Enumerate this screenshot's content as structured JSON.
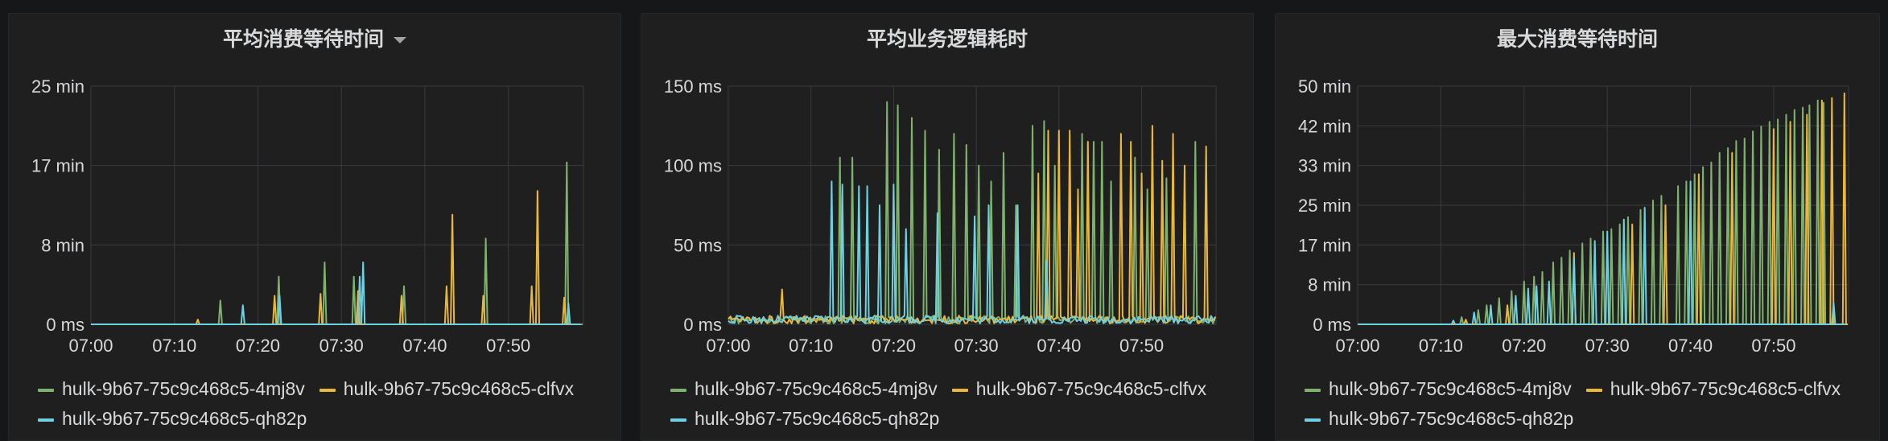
{
  "colors": {
    "green": "#7eb26d",
    "yellow": "#eab839",
    "blue": "#6ed0e0",
    "grid": "#3a3b3e",
    "axis_text": "#d8d9da"
  },
  "panels": [
    {
      "title": "平均消费等待时间",
      "has_menu_caret": true,
      "caret_icon": "chevron-down-icon"
    },
    {
      "title": "平均业务逻辑耗时",
      "has_menu_caret": false
    },
    {
      "title": "最大消费等待时间",
      "has_menu_caret": false
    }
  ],
  "legend": [
    {
      "name": "hulk-9b67-75c9c468c5-4mj8v",
      "color": "#7eb26d"
    },
    {
      "name": "hulk-9b67-75c9c468c5-clfvx",
      "color": "#eab839"
    },
    {
      "name": "hulk-9b67-75c9c468c5-qh82p",
      "color": "#6ed0e0"
    }
  ],
  "chart_data": [
    {
      "type": "line",
      "title": "平均消费等待时间",
      "xlim": [
        "07:00",
        "07:59"
      ],
      "x_ticks": [
        "07:00",
        "07:10",
        "07:20",
        "07:30",
        "07:40",
        "07:50"
      ],
      "ylim": [
        0,
        25
      ],
      "y_unit": "min",
      "y_ticks": [
        "0 ms",
        "8 min",
        "17 min",
        "25 min"
      ],
      "grid": true,
      "legend_position": "bottom",
      "series": [
        {
          "name": "hulk-9b67-75c9c468c5-4mj8v",
          "color": "#7eb26d",
          "spikes": [
            [
              15.5,
              2.5
            ],
            [
              22.5,
              5.0
            ],
            [
              28,
              6.5
            ],
            [
              31.5,
              5.0
            ],
            [
              37.5,
              4.0
            ],
            [
              47.3,
              9.0
            ],
            [
              57,
              17.0
            ]
          ]
        },
        {
          "name": "hulk-9b67-75c9c468c5-clfvx",
          "color": "#eab839",
          "spikes": [
            [
              12.8,
              0.5
            ],
            [
              22,
              3.0
            ],
            [
              27.5,
              3.2
            ],
            [
              32,
              3.5
            ],
            [
              37.2,
              3.0
            ],
            [
              42.6,
              4.0
            ],
            [
              43.3,
              11.5
            ],
            [
              47,
              3.0
            ],
            [
              52.8,
              4.0
            ],
            [
              53.5,
              14.0
            ],
            [
              56.7,
              2.8
            ]
          ]
        },
        {
          "name": "hulk-9b67-75c9c468c5-qh82p",
          "color": "#6ed0e0",
          "spikes": [
            [
              18.2,
              2.0
            ],
            [
              22.6,
              3.0
            ],
            [
              32.2,
              5.0
            ],
            [
              32.6,
              6.5
            ],
            [
              57.2,
              2.2
            ]
          ]
        }
      ]
    },
    {
      "type": "line",
      "title": "平均业务逻辑耗时",
      "xlim": [
        "07:00",
        "07:59"
      ],
      "x_ticks": [
        "07:00",
        "07:10",
        "07:20",
        "07:30",
        "07:40",
        "07:50"
      ],
      "ylim": [
        0,
        150
      ],
      "y_unit": "ms",
      "y_ticks": [
        "0 ms",
        "50 ms",
        "100 ms",
        "150 ms"
      ],
      "grid": true,
      "legend_position": "bottom",
      "series": [
        {
          "name": "hulk-9b67-75c9c468c5-4mj8v",
          "color": "#7eb26d",
          "spikes": [
            [
              13.5,
              105
            ],
            [
              15,
              105
            ],
            [
              19.2,
              140
            ],
            [
              20.5,
              138
            ],
            [
              22.2,
              130
            ],
            [
              23.8,
              122
            ],
            [
              25.5,
              110
            ],
            [
              27.3,
              120
            ],
            [
              28.8,
              113
            ],
            [
              30.3,
              100
            ],
            [
              31.8,
              90
            ],
            [
              33.3,
              108
            ],
            [
              34.8,
              75
            ],
            [
              36.8,
              125
            ],
            [
              38.2,
              128
            ],
            [
              39.5,
              100
            ],
            [
              42.8,
              120
            ],
            [
              44.2,
              115
            ],
            [
              45.2,
              115
            ],
            [
              46.3,
              90
            ],
            [
              49.2,
              105
            ],
            [
              50.7,
              85
            ],
            [
              53,
              92
            ],
            [
              56.5,
              115
            ]
          ]
        },
        {
          "name": "hulk-9b67-75c9c468c5-clfvx",
          "color": "#eab839",
          "spikes": [
            [
              6.5,
              22
            ],
            [
              37.5,
              95
            ],
            [
              38.7,
              122
            ],
            [
              40,
              122
            ],
            [
              41.3,
              122
            ],
            [
              42.3,
              85
            ],
            [
              43.5,
              115
            ],
            [
              47.5,
              120
            ],
            [
              48.7,
              115
            ],
            [
              50,
              95
            ],
            [
              51.3,
              125
            ],
            [
              52.5,
              103
            ],
            [
              53.8,
              120
            ],
            [
              55.2,
              100
            ],
            [
              57.8,
              112
            ]
          ]
        },
        {
          "name": "hulk-9b67-75c9c468c5-qh82p",
          "color": "#6ed0e0",
          "spikes": [
            [
              12.5,
              90
            ],
            [
              13.8,
              88
            ],
            [
              15.8,
              87
            ],
            [
              16.8,
              87
            ],
            [
              18.3,
              75
            ],
            [
              20,
              88
            ],
            [
              21.5,
              60
            ],
            [
              25.3,
              70
            ],
            [
              29.8,
              68
            ],
            [
              31.5,
              75
            ],
            [
              35,
              75
            ],
            [
              38.5,
              40
            ]
          ]
        }
      ]
    },
    {
      "type": "line",
      "title": "最大消费等待时间",
      "xlim": [
        "07:00",
        "07:59"
      ],
      "x_ticks": [
        "07:00",
        "07:10",
        "07:20",
        "07:30",
        "07:40",
        "07:50"
      ],
      "ylim": [
        0,
        50
      ],
      "y_unit": "min",
      "y_ticks": [
        "0 ms",
        "8 min",
        "17 min",
        "25 min",
        "33 min",
        "42 min",
        "50 min"
      ],
      "grid": true,
      "legend_position": "bottom",
      "series": [
        {
          "name": "hulk-9b67-75c9c468c5-4mj8v",
          "color": "#7eb26d",
          "spikes": [
            [
              12.5,
              1.5
            ],
            [
              14.5,
              3.0
            ],
            [
              15.5,
              4.0
            ],
            [
              17,
              5.5
            ],
            [
              18.5,
              7.0
            ],
            [
              20,
              9.0
            ],
            [
              21.2,
              10.0
            ],
            [
              22.2,
              11.0
            ],
            [
              23.5,
              13.0
            ],
            [
              24.5,
              14.0
            ],
            [
              25.5,
              15.5
            ],
            [
              27,
              17.0
            ],
            [
              28,
              18.0
            ],
            [
              29.5,
              19.5
            ],
            [
              30.5,
              20.0
            ],
            [
              31.5,
              21.0
            ],
            [
              32.5,
              22.5
            ],
            [
              34,
              24.0
            ],
            [
              35.5,
              26.0
            ],
            [
              36.5,
              27.0
            ],
            [
              38.5,
              29.0
            ],
            [
              39.5,
              30.0
            ],
            [
              40.5,
              31.5
            ],
            [
              41.5,
              33.0
            ],
            [
              42.5,
              34.0
            ],
            [
              43.5,
              36.0
            ],
            [
              44.5,
              37.0
            ],
            [
              45.5,
              38.5
            ],
            [
              46.5,
              39.0
            ],
            [
              47.5,
              40.5
            ],
            [
              48.5,
              41.5
            ],
            [
              49.5,
              42.5
            ],
            [
              50.5,
              43.0
            ],
            [
              51.5,
              44.0
            ],
            [
              52.5,
              45.0
            ],
            [
              53.5,
              45.5
            ],
            [
              54.3,
              46.0
            ],
            [
              55.3,
              47.0
            ],
            [
              56,
              46.5
            ]
          ]
        },
        {
          "name": "hulk-9b67-75c9c468c5-clfvx",
          "color": "#eab839",
          "spikes": [
            [
              13,
              1.0
            ],
            [
              18,
              4.0
            ],
            [
              26,
              15.0
            ],
            [
              33,
              21.0
            ],
            [
              37,
              25.0
            ],
            [
              41,
              31.5
            ],
            [
              45,
              36.0
            ],
            [
              50,
              41.0
            ],
            [
              52,
              42.5
            ],
            [
              54,
              44.0
            ],
            [
              55.8,
              47.0
            ],
            [
              57,
              47.5
            ],
            [
              58.5,
              48.5
            ]
          ]
        },
        {
          "name": "hulk-9b67-75c9c468c5-qh82p",
          "color": "#6ed0e0",
          "spikes": [
            [
              11.5,
              0.8
            ],
            [
              14,
              2.5
            ],
            [
              16,
              4.0
            ],
            [
              19,
              6.0
            ],
            [
              20.5,
              7.5
            ],
            [
              21.5,
              8.0
            ],
            [
              23,
              9.0
            ],
            [
              26,
              14.0
            ],
            [
              28.5,
              17.5
            ],
            [
              30,
              19.5
            ],
            [
              32,
              22.0
            ],
            [
              34.5,
              24.5
            ],
            [
              40,
              30.0
            ],
            [
              57.2,
              4.5
            ]
          ]
        }
      ]
    }
  ]
}
